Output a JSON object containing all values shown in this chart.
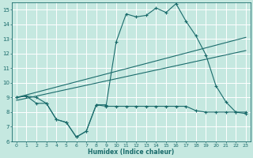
{
  "x": [
    0,
    1,
    2,
    3,
    4,
    5,
    6,
    7,
    8,
    9,
    10,
    11,
    12,
    13,
    14,
    15,
    16,
    17,
    18,
    19,
    20,
    21,
    22,
    23
  ],
  "y_upper": [
    9.0,
    9.1,
    9.0,
    8.6,
    7.5,
    7.3,
    6.3,
    6.7,
    8.5,
    8.5,
    12.8,
    14.7,
    14.5,
    14.6,
    15.1,
    14.8,
    15.4,
    14.2,
    13.2,
    11.9,
    9.8,
    8.7,
    8.0,
    7.9
  ],
  "y_lower": [
    9.0,
    9.1,
    8.6,
    8.6,
    7.5,
    7.3,
    6.3,
    6.7,
    8.5,
    8.4,
    8.4,
    8.4,
    8.4,
    8.4,
    8.4,
    8.4,
    8.4,
    8.4,
    8.1,
    8.0,
    8.0,
    8.0,
    8.0,
    8.0
  ],
  "y_trend1_x": [
    0,
    23
  ],
  "y_trend1_y": [
    9.0,
    13.1
  ],
  "y_trend2_x": [
    0,
    23
  ],
  "y_trend2_y": [
    8.8,
    12.2
  ],
  "bg_color": "#c5e8e0",
  "line_color": "#1a6b6b",
  "grid_color": "#ffffff",
  "ylim": [
    6,
    15.5
  ],
  "xlim": [
    -0.5,
    23.5
  ],
  "yticks": [
    6,
    7,
    8,
    9,
    10,
    11,
    12,
    13,
    14,
    15
  ],
  "xticks": [
    0,
    1,
    2,
    3,
    4,
    5,
    6,
    7,
    8,
    9,
    10,
    11,
    12,
    13,
    14,
    15,
    16,
    17,
    18,
    19,
    20,
    21,
    22,
    23
  ],
  "xlabel": "Humidex (Indice chaleur)"
}
